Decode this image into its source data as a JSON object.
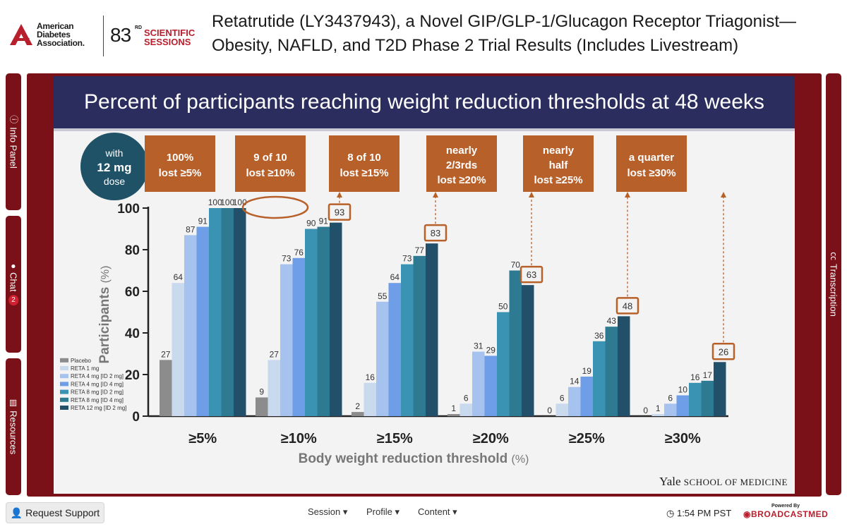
{
  "header": {
    "org_name_lines": [
      "American",
      "Diabetes",
      "Association."
    ],
    "session_number": "83",
    "session_ordinal": "RD",
    "session_label": "SCIENTIFIC SESSIONS",
    "page_title": "Retatrutide (LY3437943), a Novel GIP/GLP-1/Glucagon Receptor Triagonist—Obesity, NAFLD, and T2D Phase 2 Trial Results (Includes Livestream)"
  },
  "left_tabs": [
    {
      "label": "Info Panel",
      "icon": "info-icon"
    },
    {
      "label": "Chat",
      "icon": "chat-icon",
      "badge": "2"
    },
    {
      "label": "Resources",
      "icon": "document-icon"
    }
  ],
  "right_tab": {
    "label": "Transcription",
    "icon": "cc-icon"
  },
  "slide": {
    "title": "Percent of participants reaching weight reduction thresholds at 48 weeks",
    "dose_callout": [
      "with",
      "12 mg",
      "dose"
    ],
    "callouts": [
      [
        "100%",
        "lost ≥5%"
      ],
      [
        "9 of 10",
        "lost ≥10%"
      ],
      [
        "8 of 10",
        "lost ≥15%"
      ],
      [
        "nearly",
        "2/3rds",
        "lost ≥20%"
      ],
      [
        "nearly",
        "half",
        "lost ≥25%"
      ],
      [
        "a quarter",
        "lost ≥30%"
      ]
    ],
    "footer_brand": "Yale",
    "footer_brand_rest": "SCHOOL OF MEDICINE"
  },
  "chart_data": {
    "type": "bar",
    "ylabel": "Participants",
    "ylabel_unit": "(%)",
    "xlabel": "Body weight reduction threshold",
    "xlabel_unit": "(%)",
    "ylim": [
      0,
      100
    ],
    "yticks": [
      0,
      20,
      40,
      60,
      80,
      100
    ],
    "categories": [
      "≥5%",
      "≥10%",
      "≥15%",
      "≥20%",
      "≥25%",
      "≥30%"
    ],
    "series": [
      {
        "name": "Placebo",
        "color": "#8c8c8c",
        "values": [
          27,
          9,
          2,
          1,
          0,
          0
        ]
      },
      {
        "name": "RETA 1 mg",
        "color": "#c9d9ee",
        "values": [
          64,
          27,
          16,
          6,
          6,
          1
        ]
      },
      {
        "name": "RETA 4 mg [ID 2 mg]",
        "color": "#a5c3ee",
        "values": [
          87,
          73,
          55,
          31,
          14,
          6
        ]
      },
      {
        "name": "RETA 4 mg [ID 4 mg]",
        "color": "#6f9ee8",
        "values": [
          91,
          76,
          64,
          29,
          19,
          10
        ]
      },
      {
        "name": "RETA 8 mg [ID 2 mg]",
        "color": "#3b93b3",
        "values": [
          100,
          90,
          73,
          50,
          36,
          16
        ]
      },
      {
        "name": "RETA 8 mg [ID 4 mg]",
        "color": "#2d7a92",
        "values": [
          100,
          91,
          77,
          70,
          43,
          17
        ]
      },
      {
        "name": "RETA 12 mg [ID 2 mg]",
        "color": "#22506a",
        "values": [
          100,
          93,
          83,
          63,
          48,
          26
        ]
      }
    ],
    "highlight_values": [
      null,
      "93",
      "83",
      "63",
      "48",
      "26"
    ]
  },
  "footer": {
    "support_label": "Request Support",
    "menus": [
      "Session",
      "Profile",
      "Content"
    ],
    "time": "1:54 PM PST",
    "powered_by": "Powered By",
    "brand": "BROADCASTMED"
  },
  "colors": {
    "maroon": "#7a1018",
    "navy": "#2b2d5e",
    "orange": "#b8602a",
    "teal_circle": "#1f5266"
  }
}
